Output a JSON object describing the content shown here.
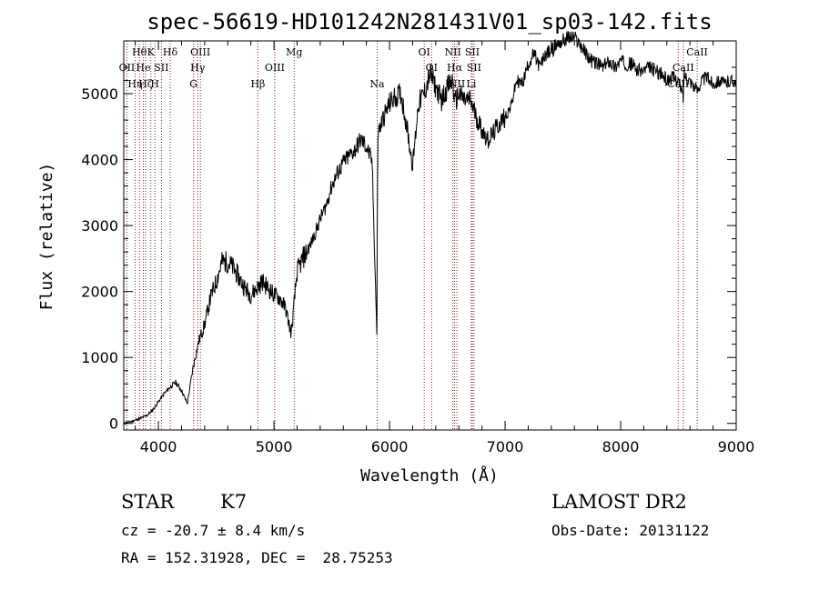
{
  "chart_data": {
    "type": "line",
    "title": "spec-56619-HD101242N281431V01_sp03-142.fits",
    "xlabel": "Wavelength (Å)",
    "ylabel": "Flux (relative)",
    "xlim": [
      3700,
      9000
    ],
    "ylim": [
      -100,
      5800
    ],
    "xticks": [
      4000,
      5000,
      6000,
      7000,
      8000,
      9000
    ],
    "yticks": [
      0,
      1000,
      2000,
      3000,
      4000,
      5000
    ],
    "grid": false,
    "legend": "none",
    "series": [
      {
        "color": "#000000",
        "x": [
          3700,
          3750,
          3800,
          3850,
          3900,
          3950,
          4000,
          4050,
          4100,
          4150,
          4200,
          4250,
          4300,
          4350,
          4400,
          4450,
          4500,
          4550,
          4600,
          4650,
          4700,
          4750,
          4800,
          4850,
          4900,
          4950,
          5000,
          5050,
          5100,
          5150,
          5200,
          5250,
          5300,
          5350,
          5400,
          5450,
          5500,
          5550,
          5600,
          5650,
          5700,
          5750,
          5800,
          5850,
          5890,
          5893,
          5900,
          5950,
          6000,
          6050,
          6100,
          6150,
          6200,
          6250,
          6300,
          6350,
          6400,
          6450,
          6500,
          6550,
          6563,
          6600,
          6650,
          6700,
          6750,
          6800,
          6850,
          6900,
          6950,
          7000,
          7050,
          7100,
          7150,
          7200,
          7250,
          7300,
          7350,
          7400,
          7450,
          7500,
          7550,
          7600,
          7650,
          7700,
          7750,
          7800,
          7850,
          7900,
          7950,
          8000,
          8050,
          8100,
          8150,
          8200,
          8250,
          8300,
          8350,
          8400,
          8450,
          8500,
          8542,
          8550,
          8600,
          8662,
          8700,
          8750,
          8800,
          8850,
          8900,
          8950,
          9000
        ],
        "y": [
          0,
          20,
          50,
          80,
          120,
          200,
          330,
          450,
          550,
          620,
          500,
          300,
          850,
          1250,
          1500,
          1900,
          2150,
          2450,
          2450,
          2350,
          2200,
          2050,
          1950,
          2050,
          2150,
          2050,
          1950,
          1900,
          1750,
          1350,
          2300,
          2500,
          2650,
          2850,
          3100,
          3300,
          3600,
          3800,
          3950,
          4050,
          4150,
          4300,
          4200,
          3950,
          1350,
          2800,
          4400,
          4650,
          4850,
          4950,
          5000,
          4500,
          3900,
          4850,
          5000,
          5300,
          5100,
          4900,
          5100,
          5200,
          4850,
          5000,
          4900,
          4900,
          4650,
          4450,
          4300,
          4400,
          4550,
          4650,
          4800,
          5200,
          5150,
          5450,
          5600,
          5400,
          5600,
          5650,
          5750,
          5800,
          5850,
          5850,
          5750,
          5600,
          5500,
          5450,
          5400,
          5500,
          5400,
          5500,
          5450,
          5450,
          5350,
          5350,
          5400,
          5350,
          5300,
          5200,
          5250,
          5200,
          4950,
          5300,
          5200,
          5050,
          5200,
          5250,
          5150,
          5200,
          5150,
          5200,
          5200
        ]
      }
    ],
    "lines": [
      {
        "x": 3727,
        "label": "OII",
        "row": 2
      },
      {
        "x": 3798,
        "label": "Hη",
        "row": 3
      },
      {
        "x": 3835,
        "label": "Hθ",
        "row": 1
      },
      {
        "x": 3869,
        "label": "He",
        "row": 2
      },
      {
        "x": 3889,
        "label": "Hζ",
        "row": 3
      },
      {
        "x": 3934,
        "label": "K",
        "row": 1
      },
      {
        "x": 3969,
        "label": "H",
        "row": 3
      },
      {
        "x": 4026,
        "label": "SII",
        "row": 2
      },
      {
        "x": 4102,
        "label": "Hδ",
        "row": 1
      },
      {
        "x": 4304,
        "label": "G",
        "row": 3
      },
      {
        "x": 4340,
        "label": "Hγ",
        "row": 2
      },
      {
        "x": 4363,
        "label": "OIII",
        "row": 1
      },
      {
        "x": 4861,
        "label": "Hβ",
        "row": 3
      },
      {
        "x": 5007,
        "label": "OIII",
        "row": 2
      },
      {
        "x": 5175,
        "label": "Mg",
        "row": 1
      },
      {
        "x": 5893,
        "label": "Na",
        "row": 3
      },
      {
        "x": 6300,
        "label": "OI",
        "row": 1
      },
      {
        "x": 6364,
        "label": "OI",
        "row": 2
      },
      {
        "x": 6548,
        "label": "NII",
        "row": 1
      },
      {
        "x": 6563,
        "label": "Hα",
        "row": 2
      },
      {
        "x": 6583,
        "label": "NII",
        "row": 3
      },
      {
        "x": 6708,
        "label": "Li",
        "row": 3
      },
      {
        "x": 6716,
        "label": "SII",
        "row": 1
      },
      {
        "x": 6731,
        "label": "SII",
        "row": 2
      },
      {
        "x": 8498,
        "label": "CaII",
        "row": 3
      },
      {
        "x": 8542,
        "label": "CaII",
        "row": 2
      },
      {
        "x": 8662,
        "label": "CaII",
        "row": 1
      }
    ]
  },
  "info": {
    "object_type": "STAR",
    "subclass": "K7",
    "survey": "LAMOST DR2",
    "redshift": "cz = -20.7 ± 8.4 km/s",
    "obs_date": "Obs-Date: 20131122",
    "coords": "RA = 152.31928, DEC =  28.75253"
  },
  "colors": {
    "line_marker": "#8b1a1a",
    "spectrum": "#000000",
    "axes": "#000000"
  }
}
